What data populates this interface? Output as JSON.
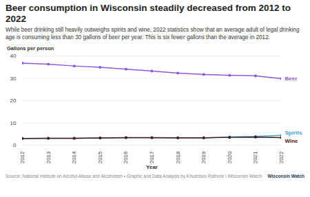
{
  "chart_data": {
    "type": "line",
    "title": "Beer consumption in Wisconsin steadily decreased from 2012 to 2022",
    "subtitle": "While beer drinking still heavily outweighs spirits and wine, 2022 statistics show that an average adult of legal drinking age is consuming less than 30 gallons of beer per year. This is six fewer gallons than the average in 2012.",
    "y_label": "Gallons per person",
    "x_label": "Year",
    "caption": "Source: National Institute on Alcohol Abuse and Alcoholism • Graphic and Data Analysis by Khushboo Rathore \\ Wisconsin Watch",
    "logo": "Wisconsin Watch",
    "x": [
      2012,
      2013,
      2014,
      2015,
      2016,
      2017,
      2018,
      2019,
      2020,
      2021,
      2022
    ],
    "series": [
      {
        "name": "Beer",
        "color": "#8e56d8",
        "values": [
          36.8,
          36.3,
          35.5,
          34.9,
          34.1,
          33.2,
          32.3,
          31.7,
          31.3,
          31.1,
          29.8
        ]
      },
      {
        "name": "Spirits",
        "color": "#37a3d2",
        "values": [
          3.0,
          3.1,
          3.1,
          3.2,
          3.3,
          3.3,
          3.2,
          3.2,
          3.7,
          3.9,
          4.4
        ]
      },
      {
        "name": "Wine",
        "color": "#4a1616",
        "values": [
          3.0,
          3.1,
          3.1,
          3.2,
          3.4,
          3.4,
          3.3,
          3.3,
          3.5,
          3.6,
          3.4
        ]
      }
    ],
    "xlim": [
      2012,
      2022
    ],
    "xticks": [
      2012,
      2013,
      2014,
      2015,
      2016,
      2017,
      2018,
      2019,
      2020,
      2021,
      2022
    ],
    "ylim": [
      0,
      40
    ],
    "yticks": [
      0,
      10,
      20,
      30,
      40
    ],
    "grid": true,
    "marker": "circle"
  }
}
